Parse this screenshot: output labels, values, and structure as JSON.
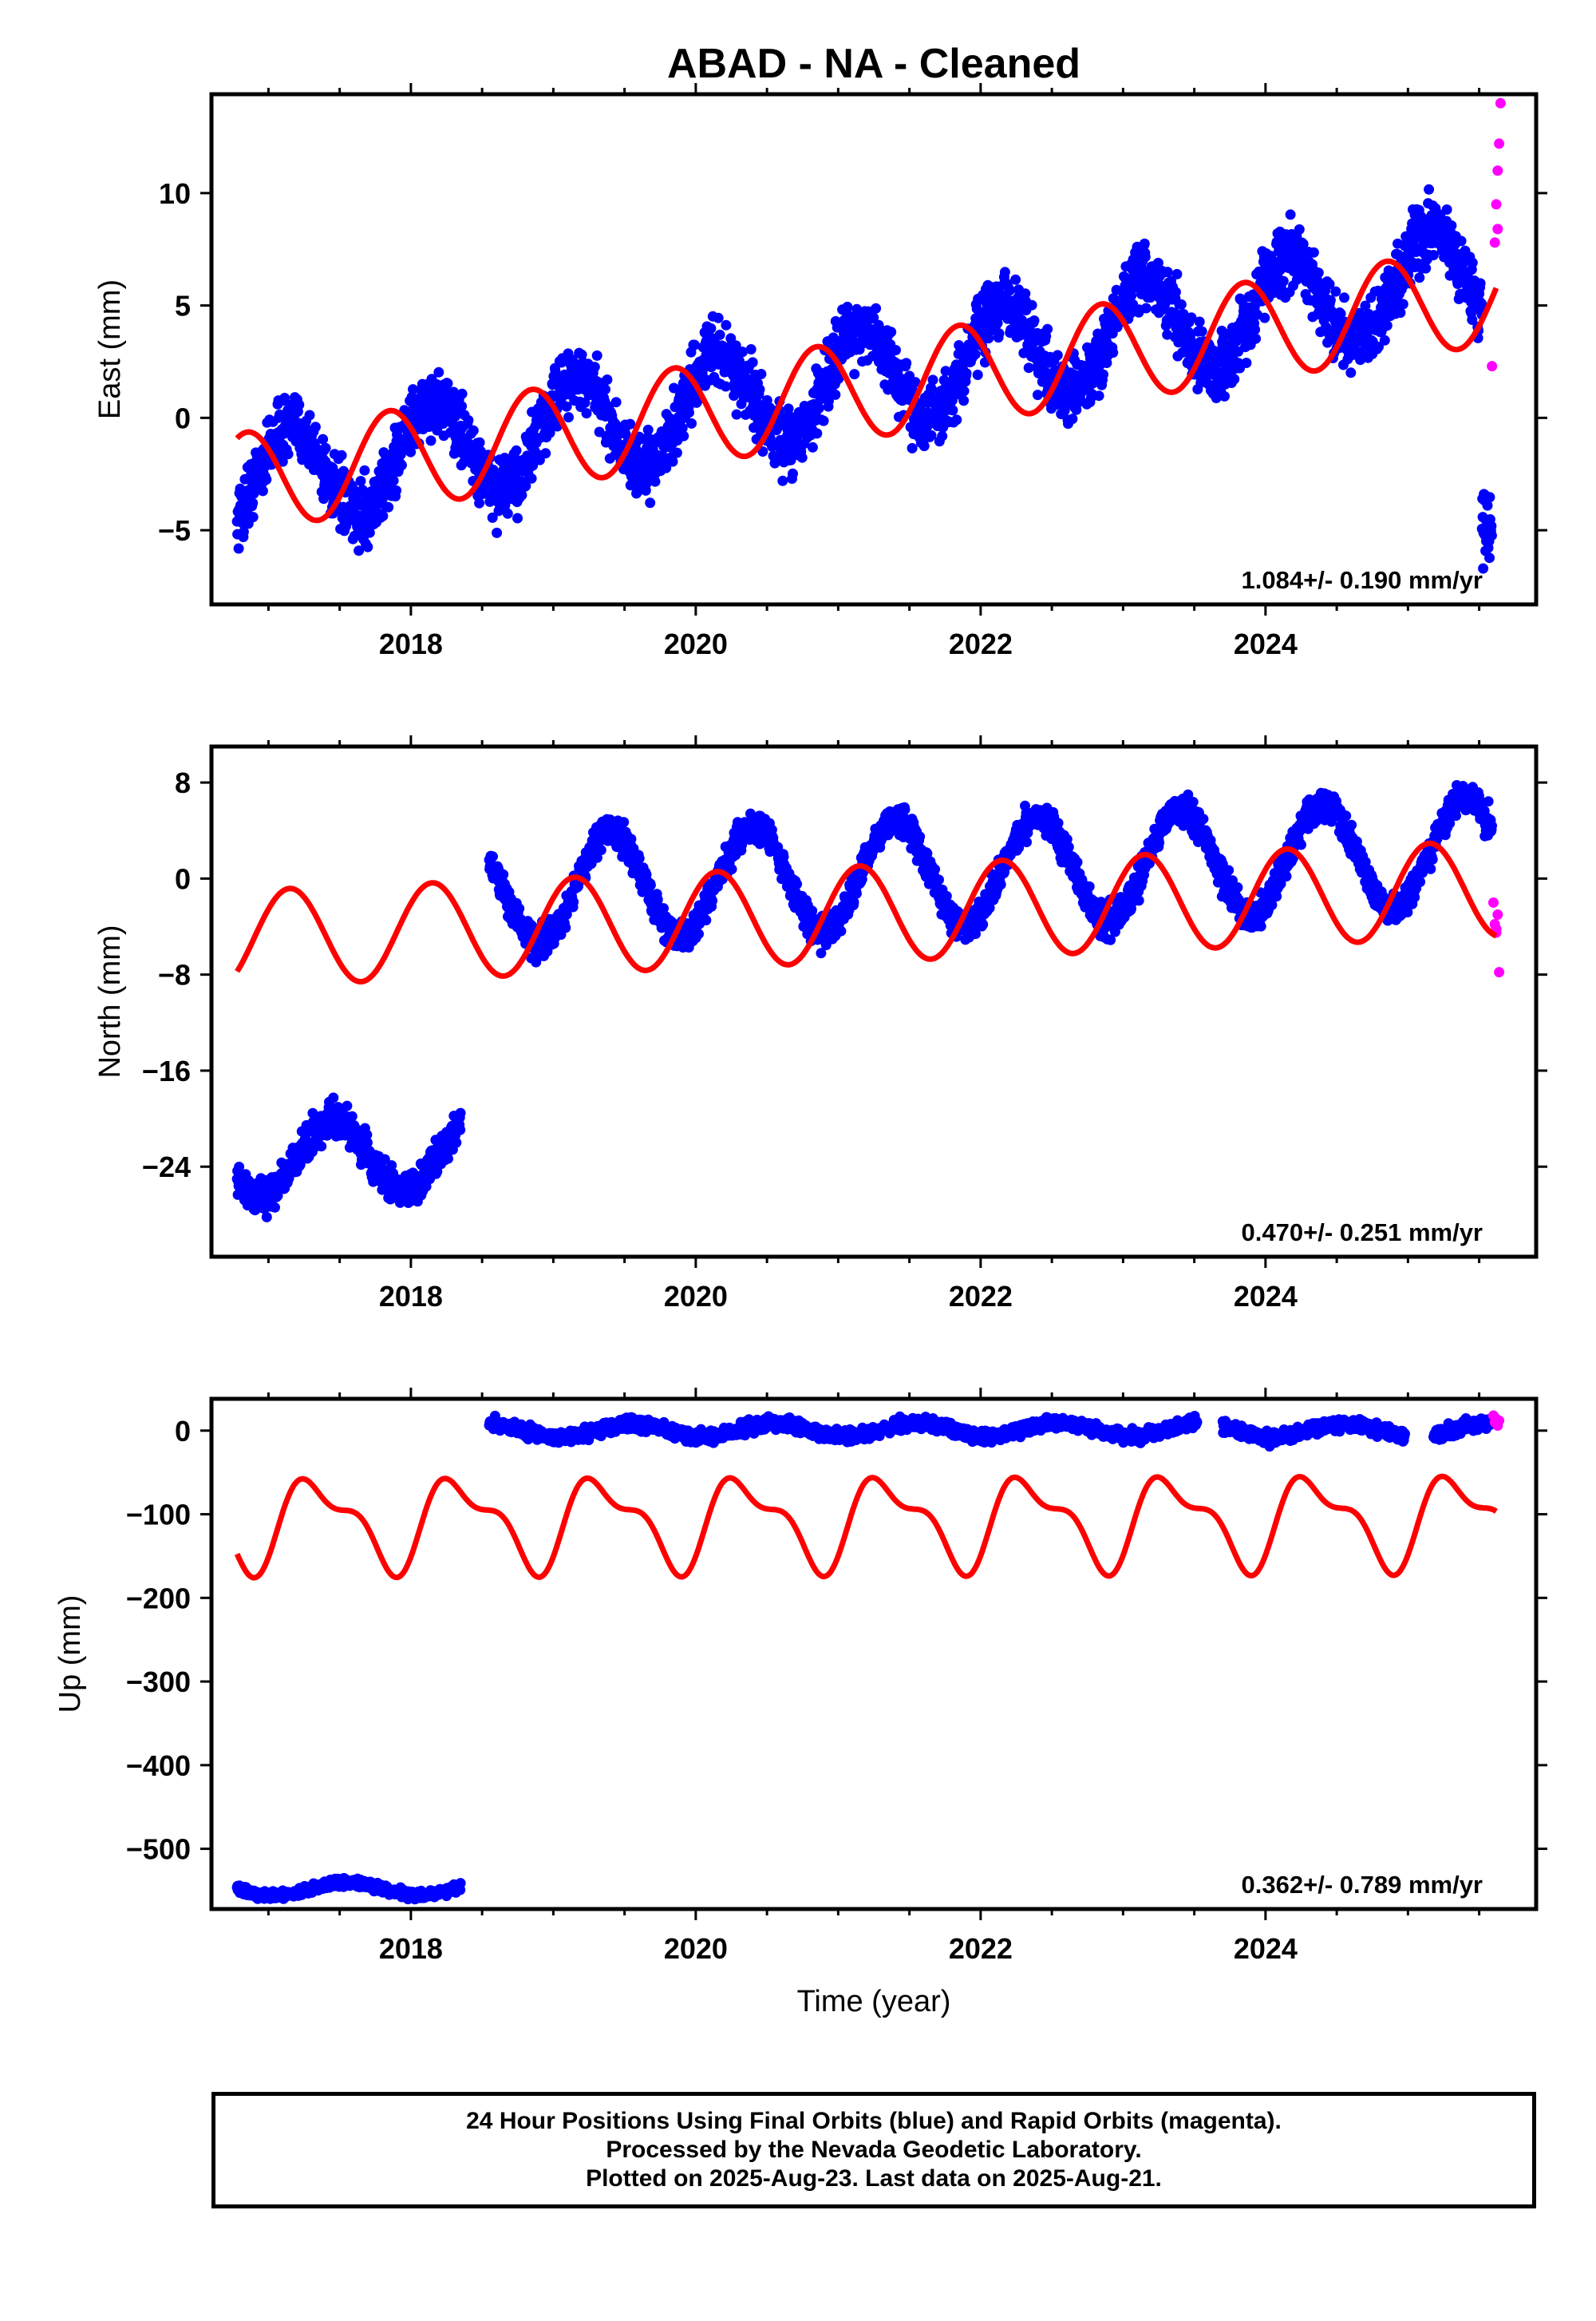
{
  "title": "ABAD  - NA - Cleaned",
  "footer": {
    "line1": "24 Hour Positions Using Final Orbits (blue) and Rapid Orbits (magenta).",
    "line2": "Processed by the Nevada Geodetic Laboratory.",
    "line3": "Plotted on 2025-Aug-23. Last data on 2025-Aug-21."
  },
  "colors": {
    "final": "#0000ff",
    "rapid": "#ff00ff",
    "model": "#ff0000",
    "frame": "#000000"
  },
  "chart_data": [
    {
      "type": "scatter",
      "ylabel": "East (mm)",
      "xlabel": "",
      "xlim": [
        2016.6,
        2025.9
      ],
      "ylim": [
        -8.3,
        14.4
      ],
      "xticks": [
        2018,
        2020,
        2022,
        2024
      ],
      "xtick_labels": [
        "2018",
        "2020",
        "2022",
        "2024"
      ],
      "yticks": [
        10,
        5,
        0,
        -5
      ],
      "ytick_labels": [
        "10",
        "5",
        "0",
        "−5"
      ],
      "rate_label": "1.084+/- 0.190 mm/yr",
      "final_segments": [
        {
          "start": 2016.78,
          "end": 2025.52,
          "offset": -3.0,
          "amplitude": 2.2,
          "phase": 2016.9,
          "slope": 1.084,
          "noise": 1.0
        },
        {
          "start": 2025.52,
          "end": 2025.59,
          "offset": -3.0,
          "amplitude": 2.2,
          "phase": 2016.9,
          "slope": 1.084,
          "noise": 1.3
        }
      ],
      "rapid_points": [
        [
          2025.59,
          2.3
        ],
        [
          2025.61,
          7.8
        ],
        [
          2025.62,
          9.5
        ],
        [
          2025.63,
          11.0
        ],
        [
          2025.64,
          12.2
        ],
        [
          2025.65,
          14.0
        ],
        [
          2025.63,
          8.4
        ]
      ],
      "model": {
        "start": 2016.78,
        "end": 2025.62,
        "offset": -2.9,
        "amplitude": 2.2,
        "phase": 2016.6,
        "slope": 0.95
      }
    },
    {
      "type": "scatter",
      "ylabel": "North (mm)",
      "xlabel": "",
      "xlim": [
        2016.6,
        2025.9
      ],
      "ylim": [
        -31.5,
        11.0
      ],
      "xticks": [
        2018,
        2020,
        2022,
        2024
      ],
      "xtick_labels": [
        "2018",
        "2020",
        "2022",
        "2024"
      ],
      "yticks": [
        8,
        0,
        -8,
        -16,
        -24
      ],
      "ytick_labels": [
        "8",
        "0",
        "−8",
        "−16",
        "−24"
      ],
      "rate_label": "0.470+/- 0.251 mm/yr",
      "final_segments": [
        {
          "start": 2016.78,
          "end": 2018.35,
          "offset": -23.5,
          "amplitude": 3.0,
          "phase": 2017.2,
          "slope": 0.47,
          "noise": 1.0
        },
        {
          "start": 2018.55,
          "end": 2025.59,
          "offset": -1.0,
          "amplitude": 4.5,
          "phase": 2019.15,
          "slope": 0.47,
          "noise": 0.9
        }
      ],
      "rapid_points": [
        [
          2025.6,
          -2.0
        ],
        [
          2025.61,
          -3.8
        ],
        [
          2025.62,
          -4.5
        ],
        [
          2025.63,
          -3.0
        ],
        [
          2025.64,
          -7.8
        ],
        [
          2025.62,
          -4.2
        ]
      ],
      "model": {
        "start": 2016.78,
        "end": 2025.62,
        "offset": -5.0,
        "amplitude": 4.0,
        "phase": 2016.9,
        "slope": 0.47
      }
    },
    {
      "type": "scatter",
      "ylabel": "Up (mm)",
      "xlabel": "Time (year)",
      "xlim": [
        2016.6,
        2025.9
      ],
      "ylim": [
        -572,
        38
      ],
      "xticks": [
        2018,
        2020,
        2022,
        2024
      ],
      "xtick_labels": [
        "2018",
        "2020",
        "2022",
        "2024"
      ],
      "yticks": [
        0,
        -100,
        -200,
        -300,
        -400,
        -500
      ],
      "ytick_labels": [
        "0",
        "−100",
        "−200",
        "−300",
        "−400",
        "−500"
      ],
      "rate_label": "0.362+/- 0.789 mm/yr",
      "final_segments": [
        {
          "start": 2016.78,
          "end": 2018.35,
          "offset": -548,
          "amplitude": 8,
          "phase": 2017.3,
          "slope": 0.36,
          "noise": 3.5
        },
        {
          "start": 2018.55,
          "end": 2023.52,
          "offset": 0,
          "amplitude": 8,
          "phase": 2018.3,
          "slope": 0.36,
          "noise": 5
        },
        {
          "start": 2023.7,
          "end": 2024.98,
          "offset": 0,
          "amplitude": 8,
          "phase": 2018.3,
          "slope": 0.36,
          "noise": 5
        },
        {
          "start": 2025.18,
          "end": 2025.58,
          "offset": 0,
          "amplitude": 8,
          "phase": 2018.3,
          "slope": 0.36,
          "noise": 5
        }
      ],
      "rapid_points": [
        [
          2025.6,
          18
        ],
        [
          2025.61,
          10
        ],
        [
          2025.62,
          14
        ],
        [
          2025.63,
          6
        ],
        [
          2025.64,
          12
        ]
      ],
      "model": {
        "start": 2016.78,
        "end": 2025.62,
        "offset": -110,
        "amplitude": 48,
        "phase": 2017.1,
        "slope": 0.36
      }
    }
  ]
}
